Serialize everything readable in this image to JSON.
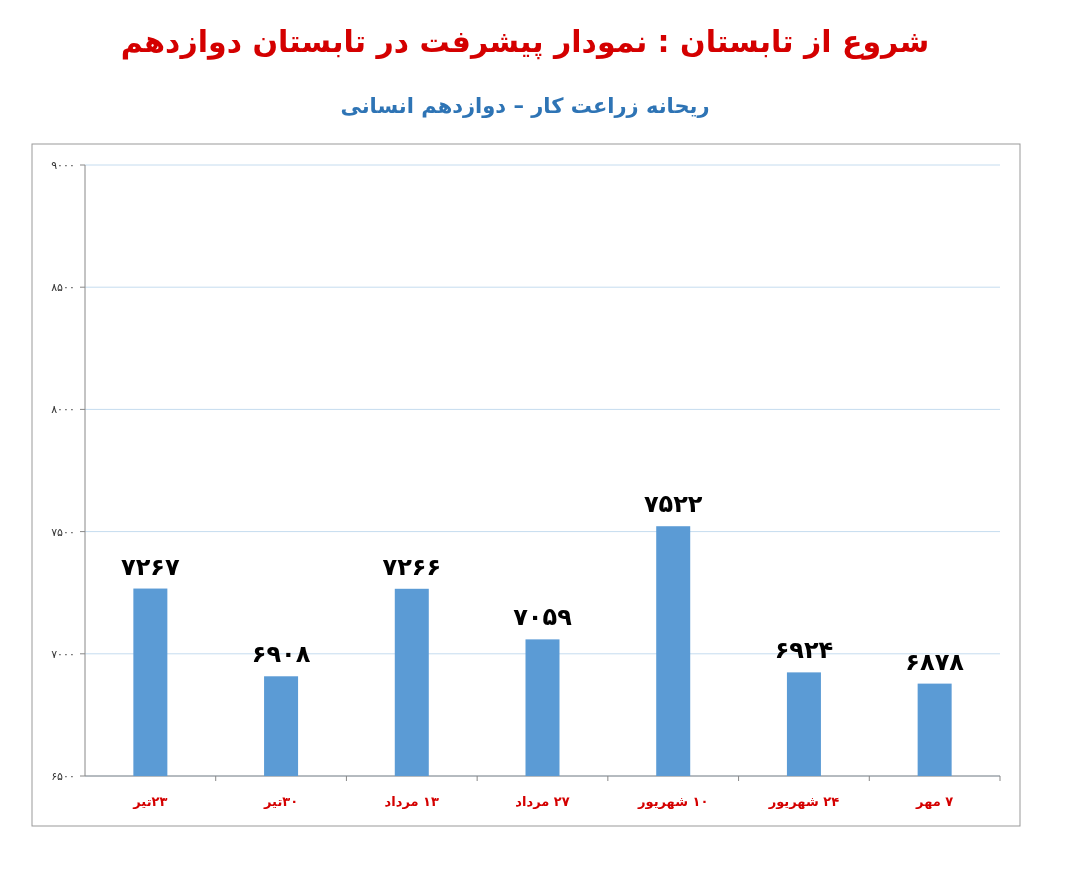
{
  "chart_data": {
    "type": "bar",
    "title": "شروع از تابستان : نمودار پیشرفت در تابستان دوازدهم",
    "subtitle": "ریحانه زراعت کار – دوازدهم انسانی",
    "categories": [
      "۲۳تیر",
      "۳۰تیر",
      "۱۳ مرداد",
      "۲۷ مرداد",
      "۱۰ شهریور",
      "۲۴ شهریور",
      "۷ مهر"
    ],
    "values": [
      7267,
      6908,
      7266,
      7059,
      7522,
      6924,
      6878
    ],
    "value_labels": [
      "۷۲۶۷",
      "۶۹۰۸",
      "۷۲۶۶",
      "۷۰۵۹",
      "۷۵۲۲",
      "۶۹۲۴",
      "۶۸۷۸"
    ],
    "color": "#5b9bd5",
    "ylim": [
      6500,
      9000
    ],
    "yticks": [
      {
        "value": 6500,
        "label": "۶۵۰۰"
      },
      {
        "value": 7000,
        "label": "۷۰۰۰"
      },
      {
        "value": 7500,
        "label": "۷۵۰۰"
      },
      {
        "value": 8000,
        "label": "۸۰۰۰"
      },
      {
        "value": 8500,
        "label": "۸۵۰۰"
      },
      {
        "value": 9000,
        "label": "۹۰۰۰"
      }
    ],
    "grid": "y"
  }
}
